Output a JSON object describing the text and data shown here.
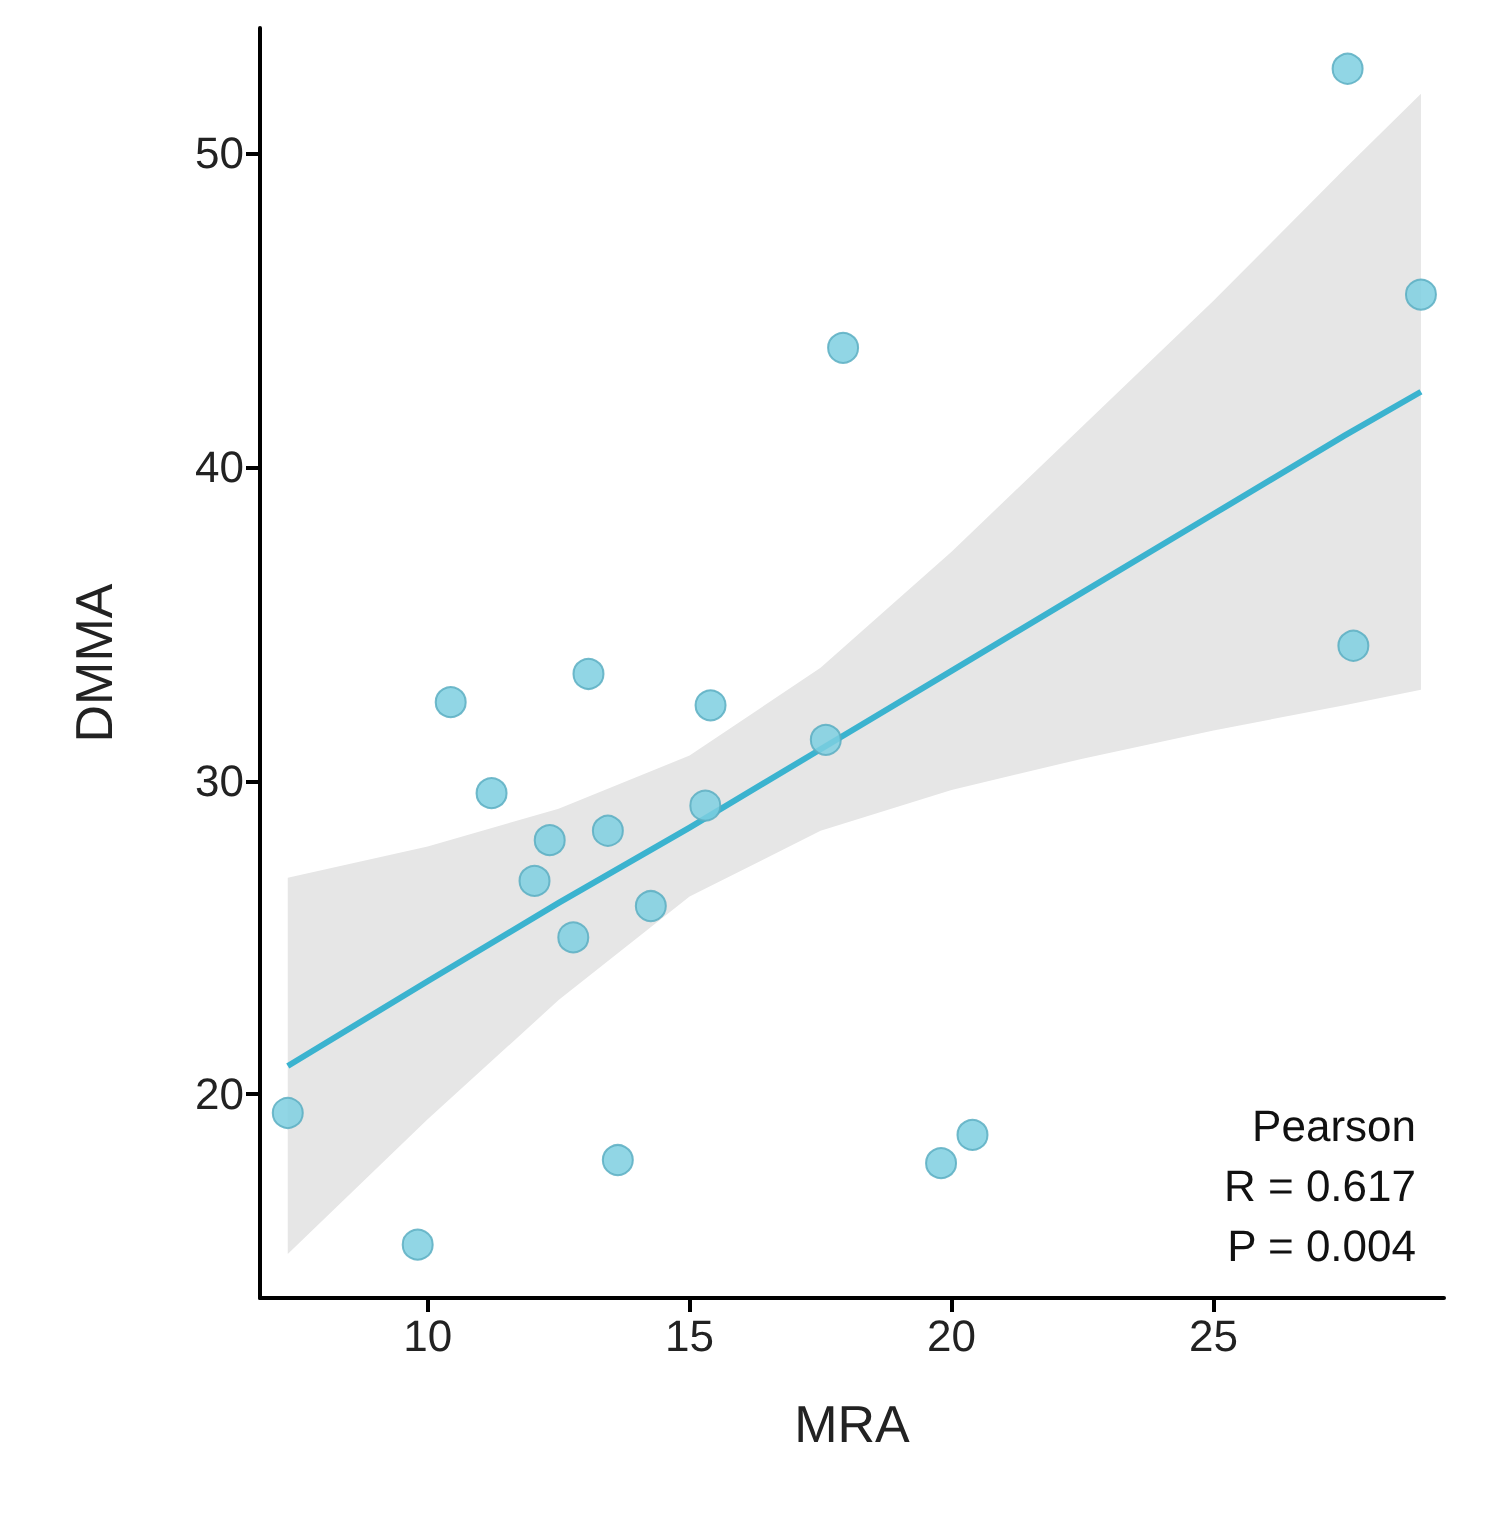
{
  "chart_data": {
    "type": "scatter",
    "xlabel": "MRA",
    "ylabel": "DMMA",
    "xlim": [
      6.8,
      29.4
    ],
    "ylim": [
      13.5,
      54
    ],
    "xticks": [
      10,
      15,
      20,
      25
    ],
    "yticks": [
      20,
      30,
      40,
      50
    ],
    "grid": false,
    "marker": "circle",
    "series": [
      {
        "color": "#7ecfe0",
        "x": [
          7.33,
          9.81,
          10.44,
          11.22,
          12.04,
          12.33,
          12.78,
          13.07,
          13.44,
          13.63,
          14.26,
          15.3,
          15.4,
          17.6,
          17.93,
          19.8,
          20.4,
          27.56,
          27.67,
          28.96
        ],
        "values": [
          19.4,
          15.2,
          32.5,
          29.6,
          26.8,
          28.1,
          25.0,
          33.4,
          28.4,
          17.9,
          26.0,
          29.2,
          32.4,
          31.3,
          43.8,
          17.8,
          18.7,
          52.7,
          34.3,
          45.5
        ]
      },
      {
        "type": "line",
        "marker": "none",
        "color": "#3bb3cf",
        "line_style": "solid",
        "x": [
          7.33,
          10,
          12.5,
          15,
          17.5,
          20,
          22.5,
          25,
          27.5,
          28.96
        ],
        "values": [
          20.9,
          23.6,
          26.1,
          28.5,
          31.0,
          33.5,
          36.0,
          38.5,
          41.0,
          42.4
        ],
        "lower": [
          14.9,
          19.2,
          23.0,
          26.3,
          28.4,
          29.7,
          30.7,
          31.6,
          32.4,
          32.9
        ],
        "upper": [
          26.9,
          27.9,
          29.1,
          30.8,
          33.6,
          37.3,
          41.3,
          45.3,
          49.5,
          51.9
        ]
      }
    ],
    "annotations": [
      "Pearson",
      "R = 0.617",
      "P = 0.004"
    ]
  }
}
